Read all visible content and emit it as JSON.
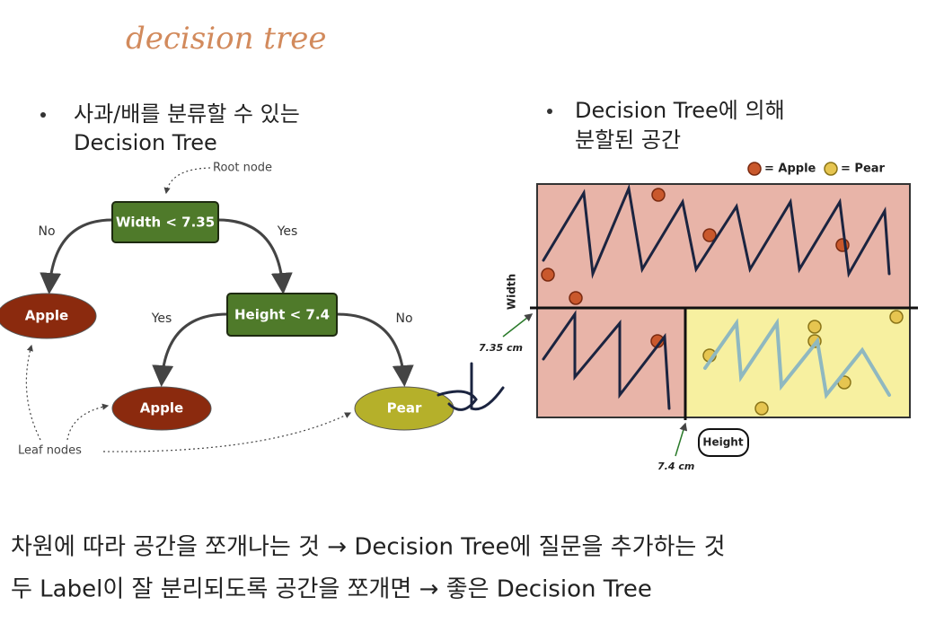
{
  "annotation": "decision tree",
  "left_panel": {
    "bullet": [
      "사과/배를 분류할 수 있는",
      "Decision Tree"
    ],
    "tree": {
      "root_label": "Root node",
      "root": "Width < 7.35",
      "root_yes": "Yes",
      "root_no": "No",
      "left_leaf": "Apple",
      "inner": "Height < 7.4",
      "inner_yes": "Yes",
      "inner_no": "No",
      "inner_left_leaf": "Apple",
      "inner_right_leaf": "Pear",
      "leaf_label": "Leaf nodes"
    }
  },
  "right_panel": {
    "bullet": [
      "Decision Tree에 의해",
      "분할된 공간"
    ],
    "legend": [
      "= Apple",
      "= Pear"
    ],
    "y_axis_label": "Width",
    "y_split_label": "7.35 cm",
    "x_axis_label": "Height",
    "x_split_label": "7.4 cm"
  },
  "footer": [
    "차원에 따라 공간을 쪼개나는 것 → Decision Tree에 질문을 추가하는 것",
    "두 Label이 잘 분리되도록 공간을 쪼개면 → 좋은 Decision Tree"
  ]
}
